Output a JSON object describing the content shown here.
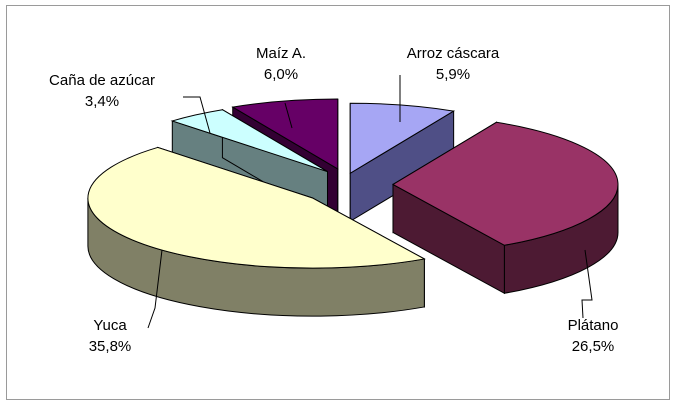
{
  "chart_data": {
    "type": "pie",
    "style": "3d-exploded",
    "title": "",
    "legend": "none",
    "slices": [
      {
        "label": "Arroz cáscara",
        "value": 5.9,
        "value_label": "5,9%",
        "top_color": "#a6a6f4",
        "side_color": "#4f4f86"
      },
      {
        "label": "Plátano",
        "value": 26.5,
        "value_label": "26,5%",
        "top_color": "#993366",
        "side_color": "#4d1a33"
      },
      {
        "label": "Yuca",
        "value": 35.8,
        "value_label": "35,8%",
        "top_color": "#ffffcc",
        "side_color": "#808066"
      },
      {
        "label": "Caña de azúcar",
        "value": 3.4,
        "value_label": "3,4%",
        "top_color": "#ccffff",
        "side_color": "#668080"
      },
      {
        "label": "Maíz A.",
        "value": 6.0,
        "value_label": "6,0%",
        "top_color": "#660066",
        "side_color": "#330033"
      }
    ]
  }
}
